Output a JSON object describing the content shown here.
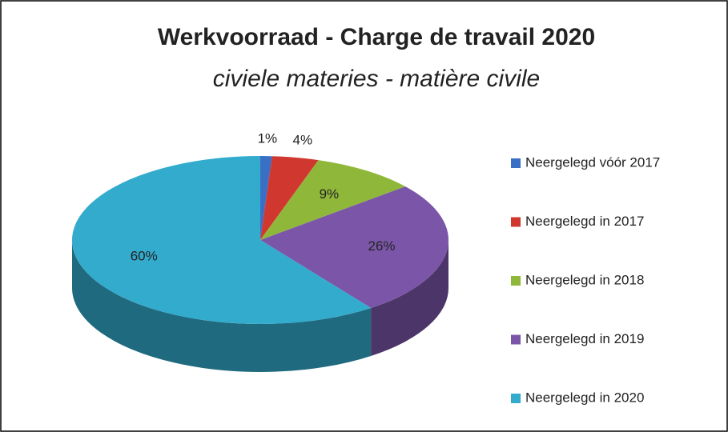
{
  "chart_data": {
    "type": "pie",
    "title": "Werkvoorraad - Charge de travail 2020",
    "subtitle": "civiele materies - matière civile",
    "categories": [
      "Neergelegd vóór 2017",
      "Neergelegd in 2017",
      "Neergelegd in 2018",
      "Neergelegd in 2019",
      "Neergelegd in 2020"
    ],
    "values": [
      1,
      4,
      9,
      26,
      60
    ],
    "value_labels": [
      "1%",
      "4%",
      "9%",
      "26%",
      "60%"
    ],
    "colors": [
      "#3a6fc6",
      "#d0372f",
      "#8fb83a",
      "#7b56a8",
      "#33abcd"
    ],
    "legend": "right"
  }
}
